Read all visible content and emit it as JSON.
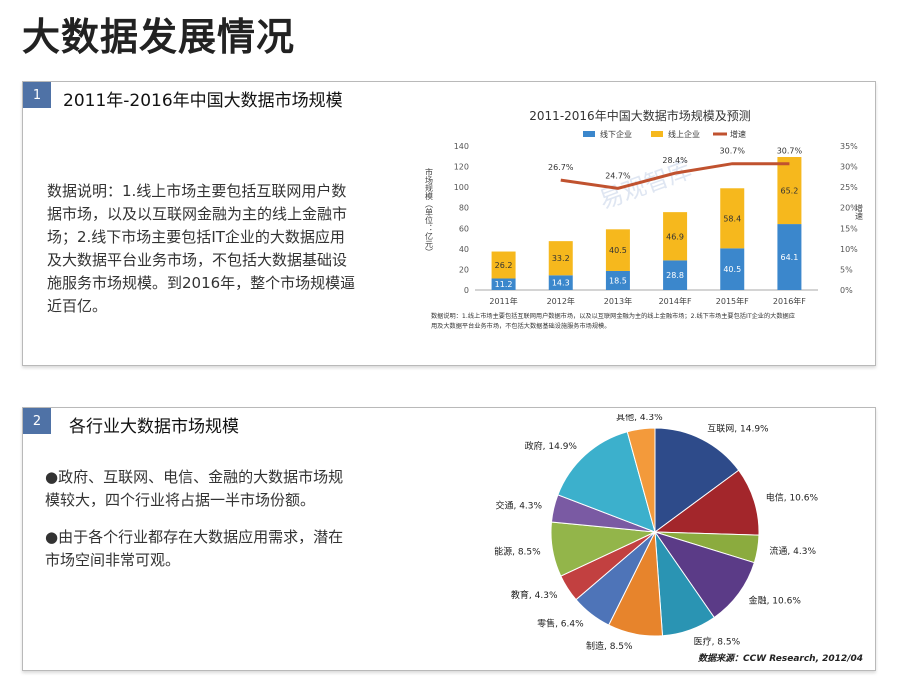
{
  "page_title": "大数据发展情况",
  "section1": {
    "number": "1",
    "title": "2011年-2016年中国大数据市场规模",
    "body_lines": [
      "数据说明：1.线上市场主要包括互联网用户数",
      "据市场，以及以互联网金融为主的线上金融市",
      "场；2.线下市场主要包括IT企业的大数据应用",
      "及大数据平台业务市场，不包括大数据基础设",
      "施服务市场规模。到2016年，整个市场规模逼",
      "近百亿。"
    ]
  },
  "section2": {
    "number": "2",
    "title": "各行业大数据市场规模",
    "bullets": [
      [
        "●政府、互联网、电信、金融的大数据市场规",
        "模较大，四个行业将占据一半市场份额。"
      ],
      [
        "●由于各个行业都存在大数据应用需求，潜在",
        "市场空间非常可观。"
      ]
    ]
  },
  "chart_data": [
    {
      "type": "bar",
      "stacked": true,
      "title": "2011-2016年中国大数据市场规模及预测",
      "categories": [
        "2011年",
        "2012年",
        "2013年",
        "2014年F",
        "2015年F",
        "2016年F"
      ],
      "ylabel": "市场规模（单位：亿元）",
      "y2label": "增速",
      "ylim": [
        0,
        140
      ],
      "y_ticks": [
        "0",
        "20",
        "40",
        "60",
        "80",
        "100",
        "120",
        "140"
      ],
      "y2lim": [
        0,
        35
      ],
      "y2_ticks": [
        "0%",
        "5%",
        "10%",
        "15%",
        "20%",
        "25%",
        "30%",
        "35%"
      ],
      "legend": [
        "线下企业",
        "线上企业",
        "增速"
      ],
      "legend_position": "top",
      "series": [
        {
          "name": "线下企业",
          "values": [
            11.2,
            14.3,
            18.5,
            28.8,
            40.5,
            64.1
          ],
          "labels": [
            "11.2",
            "14.3",
            "18.5",
            "28.8",
            "40.5",
            "64.1"
          ],
          "color": "#3b87cc"
        },
        {
          "name": "线上企业",
          "values": [
            26.2,
            33.2,
            40.5,
            46.9,
            58.4,
            65.2
          ],
          "labels": [
            "26.2",
            "33.2",
            "40.5",
            "46.9",
            "58.4",
            "65.2"
          ],
          "color": "#f6b81d"
        },
        {
          "name": "增速",
          "type": "line",
          "axis": "right",
          "values": [
            null,
            26.7,
            24.7,
            28.4,
            30.7,
            30.7
          ],
          "labels": [
            "",
            "26.7%",
            "24.7%",
            "28.4%",
            "30.7%",
            "30.7%"
          ],
          "color": "#c0522f"
        }
      ],
      "note_lines": [
        "数据说明：1.线上市场主要包括互联网用户数据市场，以及以互联网金融为主的线上金融市场；2.线下市场主要包括IT企业的大数据应",
        "用及大数据平台业务市场，不包括大数据基础设施服务市场规模。"
      ],
      "watermark": "易观智库",
      "grid": false
    },
    {
      "type": "pie",
      "slices": [
        {
          "label": "互联网, 14.9%",
          "value": 14.9,
          "color": "#2e4b8a"
        },
        {
          "label": "电信, 10.6%",
          "value": 10.6,
          "color": "#a3262b"
        },
        {
          "label": "流通, 4.3%",
          "value": 4.3,
          "color": "#8bab3e"
        },
        {
          "label": "金融, 10.6%",
          "value": 10.6,
          "color": "#5b3b87"
        },
        {
          "label": "医疗, 8.5%",
          "value": 8.5,
          "color": "#2a94b3"
        },
        {
          "label": "制造, 8.5%",
          "value": 8.5,
          "color": "#e7842c"
        },
        {
          "label": "零售, 6.4%",
          "value": 6.4,
          "color": "#4e74b8"
        },
        {
          "label": "教育, 4.3%",
          "value": 4.3,
          "color": "#c24040"
        },
        {
          "label": "能源, 8.5%",
          "value": 8.5,
          "color": "#93b54a"
        },
        {
          "label": "交通, 4.3%",
          "value": 4.3,
          "color": "#7a5aa3"
        },
        {
          "label": "政府, 14.9%",
          "value": 14.9,
          "color": "#3cb0cc"
        },
        {
          "label": "其他, 4.3%",
          "value": 4.3,
          "color": "#f39a3b"
        }
      ],
      "source": "数据来源：CCW Research, 2012/04"
    }
  ]
}
